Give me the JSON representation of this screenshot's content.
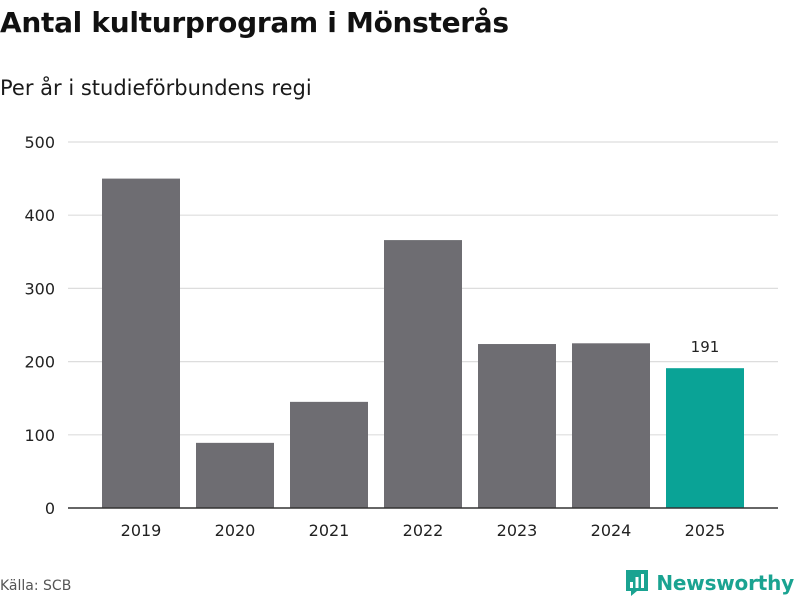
{
  "header": {
    "title": "Antal kulturprogram i Mönsterås",
    "subtitle": "Per år i studieförbundens regi"
  },
  "footer": {
    "source": "Källa: SCB",
    "brand": "Newsworthy"
  },
  "colors": {
    "bar": "#6e6d72",
    "highlight": "#0aa396",
    "grid": "#dddddd",
    "axis": "#333333",
    "brand": "#1aa391"
  },
  "chart_data": {
    "type": "bar",
    "title": "Antal kulturprogram i Mönsterås",
    "subtitle": "Per år i studieförbundens regi",
    "categories": [
      "2019",
      "2020",
      "2021",
      "2022",
      "2023",
      "2024",
      "2025"
    ],
    "values": [
      450,
      89,
      145,
      366,
      224,
      225,
      191
    ],
    "highlight_index": 6,
    "data_labels": [
      {
        "index": 6,
        "text": "191"
      }
    ],
    "yticks": [
      0,
      100,
      200,
      300,
      400,
      500
    ],
    "ylim": [
      0,
      500
    ],
    "grid": true,
    "xlabel": "",
    "ylabel": ""
  }
}
